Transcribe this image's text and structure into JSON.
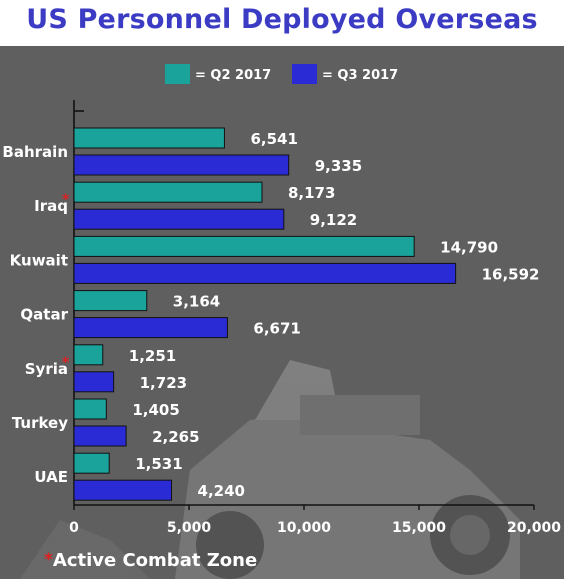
{
  "page": {
    "title": "US Personnel Deployed Overseas",
    "footnote": "Active Combat Zone",
    "footnote_marker": "*"
  },
  "colors": {
    "background": "#5f5f5f",
    "title": "#3b3bc4",
    "q2": "#1aa39a",
    "q3": "#2b2bd6",
    "marker": "#e02020",
    "text": "#ffffff"
  },
  "chart_data": {
    "type": "bar",
    "orientation": "horizontal",
    "title": "US Personnel Deployed Overseas",
    "categories": [
      "Bahrain",
      "Iraq",
      "Kuwait",
      "Qatar",
      "Syria",
      "Turkey",
      "UAE"
    ],
    "combat_zone_markers": [
      "Iraq",
      "Syria"
    ],
    "series": [
      {
        "name": "= Q2 2017",
        "color": "#1aa39a",
        "values": [
          6541,
          8173,
          14790,
          3164,
          1251,
          1405,
          1531
        ],
        "labels": [
          "6,541",
          "8,173",
          "14,790",
          "3,164",
          "1,251",
          "1,405",
          "1,531"
        ]
      },
      {
        "name": "= Q3 2017",
        "color": "#2b2bd6",
        "values": [
          9335,
          9122,
          16592,
          6671,
          1723,
          2265,
          4240
        ],
        "labels": [
          "9,335",
          "9,122",
          "16,592",
          "6,671",
          "1,723",
          "2,265",
          "4,240"
        ]
      }
    ],
    "xlim": [
      0,
      20000
    ],
    "xticks": [
      0,
      5000,
      10000,
      15000,
      20000
    ],
    "xtick_labels": [
      "0",
      "5,000",
      "10,000",
      "15,000",
      "20,000"
    ],
    "legend_position": "top",
    "grid": false
  }
}
